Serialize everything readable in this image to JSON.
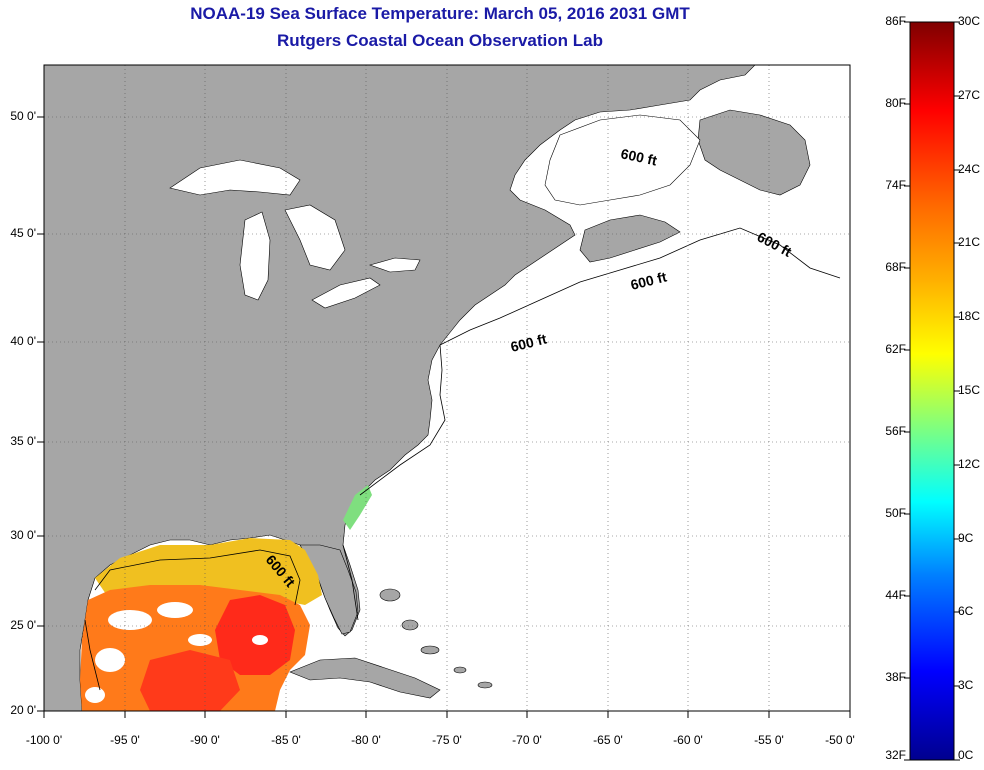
{
  "title": "NOAA-19 Sea Surface Temperature:  March 05, 2016 2031 GMT",
  "subtitle": "Rutgers Coastal Ocean Observation Lab",
  "lat_labels": [
    "50 0'",
    "45 0'",
    "40 0'",
    "35 0'",
    "30 0'",
    "25 0'",
    "20 0'"
  ],
  "lon_labels": [
    "-100 0'",
    "-95 0'",
    "-90 0'",
    "-85 0'",
    "-80 0'",
    "-75 0'",
    "-70 0'",
    "-65 0'",
    "-60 0'",
    "-55 0'",
    "-50 0'"
  ],
  "depth_labels": [
    "600 ft",
    "600 ft",
    "600 ft",
    "600 ft",
    "600 ft"
  ],
  "colorbar": {
    "fahrenheit": [
      "86F",
      "80F",
      "74F",
      "68F",
      "62F",
      "56F",
      "50F",
      "44F",
      "38F",
      "32F"
    ],
    "celsius": [
      "30C",
      "27C",
      "24C",
      "21C",
      "18C",
      "15C",
      "12C",
      "9C",
      "6C",
      "3C",
      "0C"
    ],
    "colors": [
      "#7f0000",
      "#ff0000",
      "#ff7f00",
      "#ffff00",
      "#7fff7f",
      "#00ffff",
      "#007fff",
      "#0000ff",
      "#00008f"
    ]
  },
  "colors": {
    "land": "#a6a6a6",
    "ocean": "#ffffff",
    "title": "#1a1aa6",
    "gulf_warm": "#ff7a1a",
    "gulf_hot": "#ff2a1a",
    "gulf_yellow": "#f0c020"
  }
}
